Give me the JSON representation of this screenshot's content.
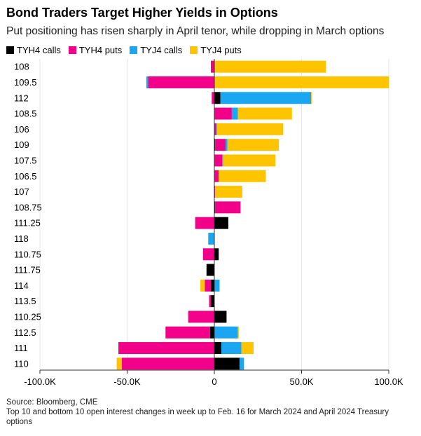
{
  "chart_data": {
    "type": "bar",
    "orientation": "horizontal",
    "stacked": "diverging",
    "title": "Bond Traders Target Higher Yields in Options",
    "subtitle": "Put positioning has risen sharply in April tenor, while dropping in March options",
    "categories": [
      "108",
      "109.5",
      "112",
      "108.5",
      "106",
      "109",
      "107.5",
      "106.5",
      "107",
      "108.75",
      "111.25",
      "118",
      "110.75",
      "111.75",
      "114",
      "113.5",
      "110.25",
      "112.5",
      "111",
      "110"
    ],
    "series": [
      {
        "name": "TYH4 calls",
        "color": "#000000",
        "values": [
          0,
          0,
          3500,
          0,
          0,
          500,
          0,
          0,
          0,
          500,
          8000,
          0,
          2500,
          -4500,
          -2000,
          -2000,
          7000,
          -2500,
          4000,
          14500
        ]
      },
      {
        "name": "TYH4 puts",
        "color": "#f20089",
        "values": [
          -2000,
          -38000,
          -1500,
          10000,
          1000,
          6000,
          4500,
          2500,
          500,
          14500,
          -11000,
          0,
          -6500,
          0,
          -3500,
          -1000,
          -15000,
          -25500,
          -55000,
          -53000
        ]
      },
      {
        "name": "TYJ4 calls",
        "color": "#1aa6f0",
        "values": [
          0,
          -1000,
          52000,
          3500,
          500,
          1000,
          500,
          0,
          0,
          0,
          0,
          -3500,
          0,
          0,
          3000,
          0,
          0,
          13500,
          11500,
          2500
        ]
      },
      {
        "name": "TYJ4 puts",
        "color": "#ffc400",
        "values": [
          64000,
          100000,
          500,
          31000,
          38000,
          29500,
          30000,
          27000,
          15500,
          0,
          0,
          0,
          0,
          0,
          -2500,
          0,
          0,
          500,
          7000,
          -3000
        ]
      }
    ],
    "xlim": [
      -100000,
      100000
    ],
    "x_ticks": [
      "-100.0K",
      "-50.0K",
      "0",
      "50.0K",
      "100.0K"
    ],
    "x_tick_values": [
      -100000,
      -50000,
      0,
      50000,
      100000
    ],
    "grid": true,
    "legend_position": "top-left"
  },
  "footer": {
    "source": "Source: Bloomberg, CME",
    "note": "Top 10 and bottom 10 open interest changes in week up to Feb. 16 for March 2024 and April 2024 Treasury options"
  }
}
